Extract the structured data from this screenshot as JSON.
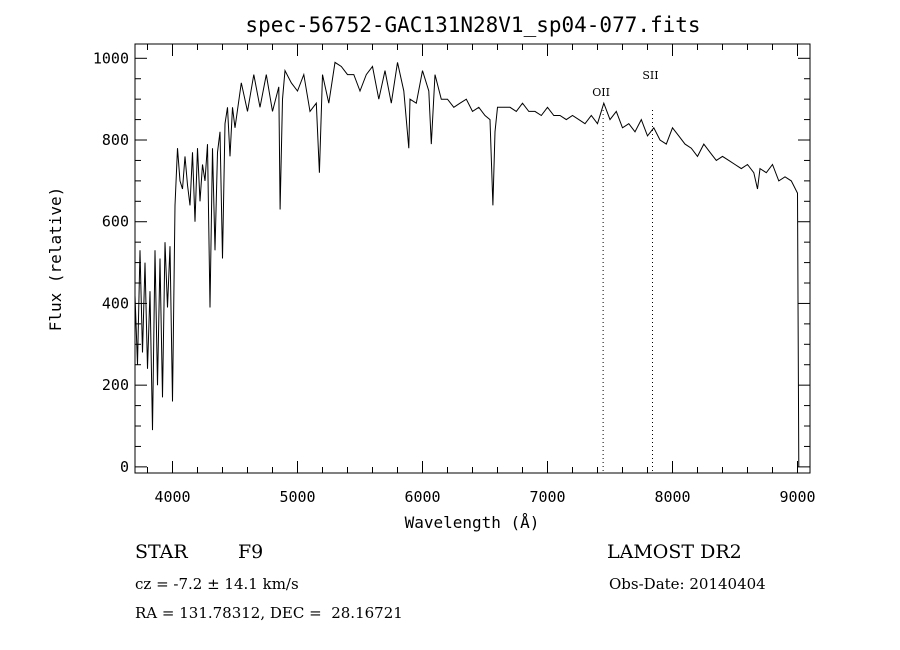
{
  "chart_data": {
    "type": "line",
    "title": "spec-56752-GAC131N28V1_sp04-077.fits",
    "xlabel": "Wavelength (Å)",
    "ylabel": "Flux (relative)",
    "xlim": [
      3700,
      9100
    ],
    "ylim": [
      -15,
      1035
    ],
    "x_ticks": [
      "4000",
      "5000",
      "6000",
      "7000",
      "8000",
      "9000"
    ],
    "y_ticks": [
      "0",
      "200",
      "400",
      "600",
      "800",
      "1000"
    ],
    "grid": false,
    "line_markers": [
      {
        "label": "OII",
        "x": 7445
      },
      {
        "label": "SII",
        "x": 7840
      }
    ],
    "series": [
      {
        "x": [
          3700,
          3720,
          3740,
          3760,
          3780,
          3800,
          3820,
          3840,
          3860,
          3880,
          3900,
          3920,
          3940,
          3960,
          3980,
          4000,
          4020,
          4040,
          4060,
          4080,
          4100,
          4120,
          4140,
          4160,
          4180,
          4200,
          4220,
          4240,
          4260,
          4280,
          4300,
          4320,
          4340,
          4360,
          4380,
          4400,
          4420,
          4440,
          4460,
          4480,
          4500,
          4550,
          4600,
          4650,
          4700,
          4750,
          4800,
          4850,
          4861,
          4880,
          4900,
          4950,
          5000,
          5050,
          5100,
          5150,
          5175,
          5200,
          5250,
          5300,
          5350,
          5400,
          5450,
          5500,
          5550,
          5600,
          5650,
          5700,
          5750,
          5800,
          5850,
          5890,
          5900,
          5950,
          6000,
          6050,
          6070,
          6100,
          6150,
          6200,
          6250,
          6300,
          6350,
          6400,
          6450,
          6500,
          6540,
          6563,
          6580,
          6600,
          6650,
          6700,
          6750,
          6800,
          6850,
          6900,
          6950,
          7000,
          7050,
          7100,
          7150,
          7200,
          7250,
          7300,
          7350,
          7400,
          7450,
          7500,
          7550,
          7600,
          7650,
          7700,
          7750,
          7800,
          7850,
          7900,
          7950,
          8000,
          8050,
          8100,
          8150,
          8200,
          8250,
          8300,
          8350,
          8400,
          8450,
          8500,
          8550,
          8600,
          8650,
          8680,
          8700,
          8750,
          8800,
          8850,
          8900,
          8950,
          9000,
          9010
        ],
        "y": [
          420,
          250,
          530,
          280,
          500,
          240,
          430,
          90,
          530,
          200,
          510,
          170,
          550,
          390,
          540,
          160,
          640,
          780,
          700,
          680,
          760,
          690,
          640,
          770,
          600,
          780,
          650,
          740,
          700,
          790,
          390,
          780,
          530,
          770,
          820,
          510,
          840,
          880,
          760,
          880,
          830,
          940,
          870,
          960,
          880,
          960,
          870,
          930,
          630,
          900,
          970,
          940,
          920,
          960,
          870,
          890,
          720,
          960,
          890,
          990,
          980,
          960,
          960,
          920,
          960,
          980,
          900,
          970,
          890,
          990,
          920,
          780,
          900,
          890,
          970,
          920,
          790,
          960,
          900,
          900,
          880,
          890,
          900,
          870,
          880,
          860,
          850,
          640,
          820,
          880,
          880,
          880,
          870,
          890,
          870,
          870,
          860,
          880,
          860,
          860,
          850,
          860,
          850,
          840,
          860,
          840,
          890,
          850,
          870,
          830,
          840,
          820,
          850,
          810,
          830,
          800,
          790,
          830,
          810,
          790,
          780,
          760,
          790,
          770,
          750,
          760,
          750,
          740,
          730,
          740,
          720,
          680,
          730,
          720,
          740,
          700,
          710,
          700,
          670,
          0
        ]
      }
    ]
  },
  "footer": {
    "obj_class": "STAR",
    "subclass": "F9",
    "cz": "cz = -7.2 ± 14.1 km/s",
    "radec": "RA = 131.78312, DEC =  28.16721",
    "survey": "LAMOST DR2",
    "obs_date": "Obs-Date: 20140404"
  }
}
